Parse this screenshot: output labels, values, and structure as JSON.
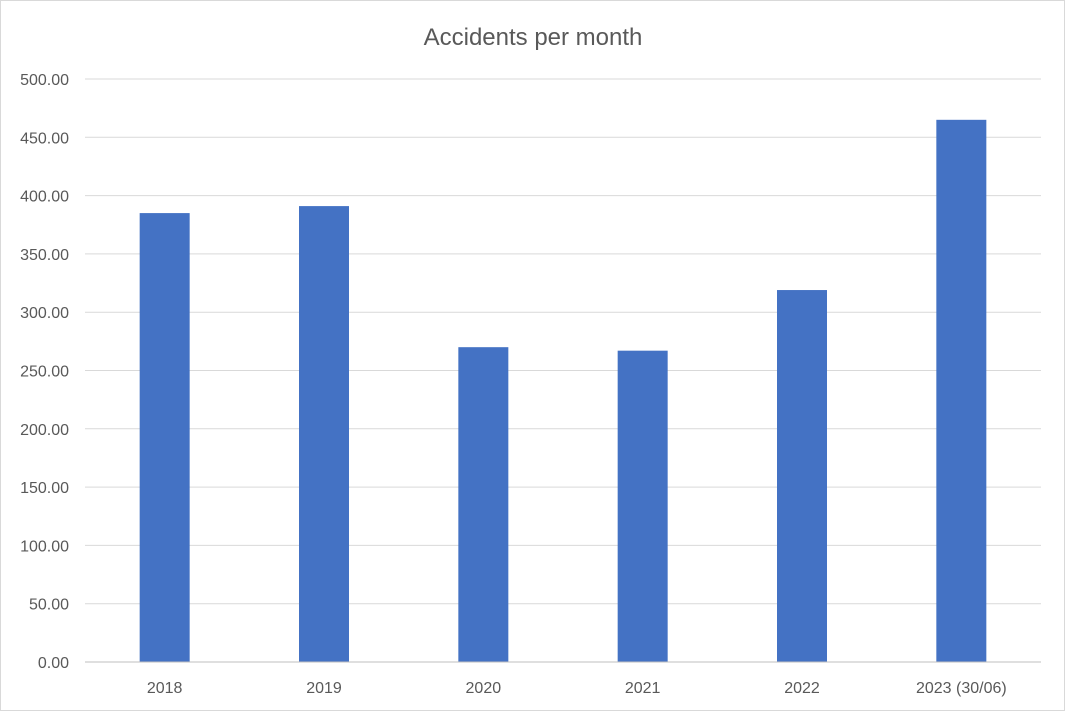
{
  "chart_data": {
    "type": "bar",
    "title": "Accidents per month",
    "categories": [
      "2018",
      "2019",
      "2020",
      "2021",
      "2022",
      "2023 (30/06)"
    ],
    "values": [
      385,
      391,
      270,
      267,
      319,
      465
    ],
    "ylim": [
      0,
      500
    ],
    "yticks": [
      "0.00",
      "50.00",
      "100.00",
      "150.00",
      "200.00",
      "250.00",
      "300.00",
      "350.00",
      "400.00",
      "450.00",
      "500.00"
    ],
    "xlabel": "",
    "ylabel": "",
    "grid": true,
    "legend": "none",
    "bar_color": "#4472c4"
  }
}
